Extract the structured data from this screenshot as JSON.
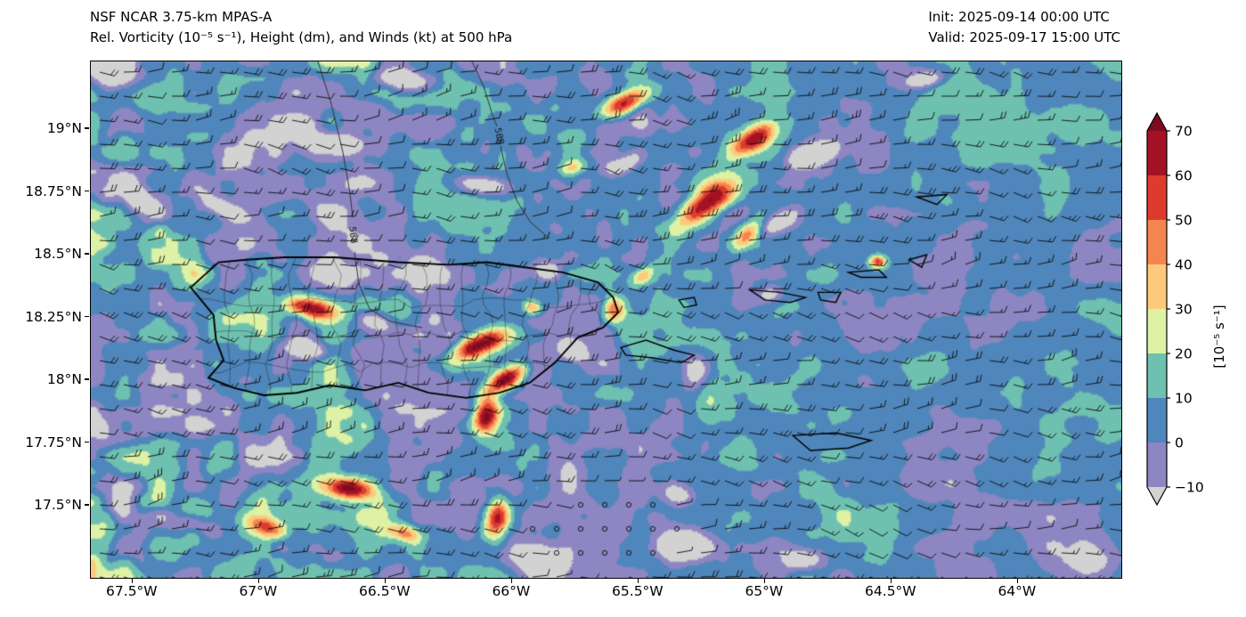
{
  "header": {
    "model_line": "NSF NCAR 3.75-km MPAS-A",
    "variable_line": "Rel. Vorticity (10⁻⁵ s⁻¹), Height (dm), and Winds (kt) at 500 hPa"
  },
  "run_info": {
    "init": "Init: 2025-09-14 00:00 UTC",
    "valid": "Valid: 2025-09-17 15:00 UTC"
  },
  "chart_data": {
    "type": "heatmap",
    "title": "Rel. Vorticity (10⁻⁵ s⁻¹), Height (dm), and Winds (kt) at 500 hPa",
    "model": "NSF NCAR 3.75-km MPAS-A",
    "level": "500 hPa",
    "fields": [
      "relative_vorticity_fill",
      "geopotential_height_contours",
      "wind_barbs"
    ],
    "extent": {
      "lon_west": -67.665,
      "lon_east": -63.591,
      "lat_south": 17.213,
      "lat_north": 19.27
    },
    "x_ticks": [
      {
        "lon": -67.5,
        "label": "67.5°W"
      },
      {
        "lon": -67.0,
        "label": "67°W"
      },
      {
        "lon": -66.5,
        "label": "66.5°W"
      },
      {
        "lon": -66.0,
        "label": "66°W"
      },
      {
        "lon": -65.5,
        "label": "65.5°W"
      },
      {
        "lon": -65.0,
        "label": "65°W"
      },
      {
        "lon": -64.5,
        "label": "64.5°W"
      },
      {
        "lon": -64.0,
        "label": "64°W"
      }
    ],
    "y_ticks": [
      {
        "lat": 19.0,
        "label": "19°N"
      },
      {
        "lat": 18.75,
        "label": "18.75°N"
      },
      {
        "lat": 18.5,
        "label": "18.5°N"
      },
      {
        "lat": 18.25,
        "label": "18.25°N"
      },
      {
        "lat": 18.0,
        "label": "18°N"
      },
      {
        "lat": 17.75,
        "label": "17.75°N"
      },
      {
        "lat": 17.5,
        "label": "17.5°N"
      }
    ],
    "colorbar": {
      "unit_label": "[10⁻⁵ s⁻¹]",
      "tick_values": [
        70,
        60,
        50,
        40,
        30,
        20,
        10,
        0,
        -10
      ],
      "tick_labels": [
        "70",
        "60",
        "50",
        "40",
        "30",
        "20",
        "10",
        "0",
        "−10"
      ],
      "levels": [
        -10,
        0,
        10,
        20,
        30,
        40,
        50,
        60,
        70
      ],
      "bin_colors": [
        "#8d86c2",
        "#4f86bb",
        "#6ec1b0",
        "#ddf2a5",
        "#fdc97b",
        "#f5854e",
        "#dc3b2d",
        "#a31224"
      ],
      "under_color": "#d2d2d2",
      "over_color": "#7d0b20",
      "extend": "both"
    },
    "wind": {
      "barb_units": "kt",
      "typical_speed_kt": 16,
      "prevailing_direction": "easterly"
    },
    "height_contours": [
      {
        "label": "588",
        "points": [
          [
            255,
            0
          ],
          [
            270,
            48
          ],
          [
            283,
            102
          ],
          [
            291,
            148
          ],
          [
            294,
            175
          ],
          [
            296,
            215
          ],
          [
            301,
            250
          ],
          [
            313,
            278
          ],
          [
            336,
            292
          ],
          [
            372,
            299
          ]
        ],
        "gap": 5,
        "label_x": 294,
        "label_y": 195,
        "label_rot": 1.45
      },
      {
        "label": "588",
        "points": [
          [
            428,
            0
          ],
          [
            441,
            28
          ],
          [
            451,
            60
          ],
          [
            456,
            73
          ],
          [
            460,
            95
          ],
          [
            467,
            126
          ],
          [
            478,
            156
          ],
          [
            494,
            181
          ],
          [
            515,
            199
          ]
        ],
        "gap": 4,
        "label_x": 458,
        "label_y": 84,
        "label_rot": 1.35
      }
    ],
    "geography": {
      "puerto_rico": [
        [
          -67.16,
          18.47
        ],
        [
          -67.05,
          18.48
        ],
        [
          -66.9,
          18.49
        ],
        [
          -66.7,
          18.49
        ],
        [
          -66.45,
          18.47
        ],
        [
          -66.25,
          18.46
        ],
        [
          -66.1,
          18.47
        ],
        [
          -65.95,
          18.45
        ],
        [
          -65.8,
          18.43
        ],
        [
          -65.66,
          18.39
        ],
        [
          -65.6,
          18.33
        ],
        [
          -65.58,
          18.27
        ],
        [
          -65.64,
          18.21
        ],
        [
          -65.74,
          18.17
        ],
        [
          -65.83,
          18.07
        ],
        [
          -65.93,
          17.99
        ],
        [
          -66.05,
          17.95
        ],
        [
          -66.18,
          17.93
        ],
        [
          -66.33,
          17.95
        ],
        [
          -66.45,
          17.99
        ],
        [
          -66.58,
          17.96
        ],
        [
          -66.72,
          17.98
        ],
        [
          -66.85,
          17.95
        ],
        [
          -66.98,
          17.94
        ],
        [
          -67.1,
          17.97
        ],
        [
          -67.2,
          18.01
        ],
        [
          -67.14,
          18.08
        ],
        [
          -67.17,
          18.16
        ],
        [
          -67.18,
          18.26
        ],
        [
          -67.27,
          18.37
        ]
      ],
      "islands": [
        [
          [
            -65.57,
            18.13
          ],
          [
            -65.47,
            18.16
          ],
          [
            -65.36,
            18.12
          ],
          [
            -65.28,
            18.1
          ],
          [
            -65.33,
            18.07
          ],
          [
            -65.45,
            18.09
          ],
          [
            -65.55,
            18.1
          ]
        ],
        [
          [
            -65.34,
            18.32
          ],
          [
            -65.28,
            18.33
          ],
          [
            -65.27,
            18.3
          ],
          [
            -65.32,
            18.29
          ]
        ],
        [
          [
            -65.06,
            18.36
          ],
          [
            -64.94,
            18.35
          ],
          [
            -64.84,
            18.33
          ],
          [
            -64.9,
            18.31
          ],
          [
            -65.0,
            18.32
          ]
        ],
        [
          [
            -64.79,
            18.35
          ],
          [
            -64.7,
            18.35
          ],
          [
            -64.72,
            18.31
          ],
          [
            -64.78,
            18.32
          ]
        ],
        [
          [
            -64.67,
            18.43
          ],
          [
            -64.55,
            18.44
          ],
          [
            -64.52,
            18.41
          ],
          [
            -64.62,
            18.41
          ]
        ],
        [
          [
            -64.43,
            18.48
          ],
          [
            -64.36,
            18.5
          ],
          [
            -64.38,
            18.45
          ]
        ],
        [
          [
            -64.4,
            18.73
          ],
          [
            -64.28,
            18.74
          ],
          [
            -64.32,
            18.7
          ]
        ],
        [
          [
            -64.89,
            17.78
          ],
          [
            -64.72,
            17.79
          ],
          [
            -64.58,
            17.76
          ],
          [
            -64.67,
            17.73
          ],
          [
            -64.82,
            17.72
          ]
        ]
      ]
    },
    "render": {
      "seeds": [
        11,
        23,
        37,
        71,
        83,
        53
      ],
      "calm": {
        "x": 594,
        "y": 532,
        "sx": 100,
        "sy": 46,
        "amp": 22
      },
      "blobs": [
        {
          "x": 599,
          "y": 47,
          "sx": 30,
          "sy": 12,
          "rot": -0.45,
          "amp": 62
        },
        {
          "x": 744,
          "y": 88,
          "sx": 30,
          "sy": 13,
          "rot": -0.55,
          "amp": 68
        },
        {
          "x": 692,
          "y": 160,
          "sx": 38,
          "sy": 16,
          "rot": -0.65,
          "amp": 74
        },
        {
          "x": 737,
          "y": 196,
          "sx": 22,
          "sy": 12,
          "rot": -0.8,
          "amp": 50
        },
        {
          "x": 249,
          "y": 277,
          "sx": 27,
          "sy": 11,
          "rot": 0.18,
          "amp": 63
        },
        {
          "x": 438,
          "y": 318,
          "sx": 30,
          "sy": 12,
          "rot": -0.35,
          "amp": 70
        },
        {
          "x": 467,
          "y": 357,
          "sx": 26,
          "sy": 11,
          "rot": -0.5,
          "amp": 66
        },
        {
          "x": 444,
          "y": 398,
          "sx": 14,
          "sy": 20,
          "rot": 0.25,
          "amp": 70
        },
        {
          "x": 587,
          "y": 278,
          "sx": 13,
          "sy": 15,
          "rot": 0,
          "amp": 54
        },
        {
          "x": 497,
          "y": 277,
          "sx": 11,
          "sy": 9,
          "rot": 0.3,
          "amp": 42
        },
        {
          "x": 289,
          "y": 480,
          "sx": 30,
          "sy": 12,
          "rot": 0.12,
          "amp": 64
        },
        {
          "x": 457,
          "y": 513,
          "sx": 13,
          "sy": 24,
          "rot": 0.1,
          "amp": 58
        },
        {
          "x": 199,
          "y": 524,
          "sx": 22,
          "sy": 10,
          "rot": 0.3,
          "amp": 40
        },
        {
          "x": 352,
          "y": 530,
          "sx": 18,
          "sy": 9,
          "rot": 0.25,
          "amp": 38
        },
        {
          "x": 620,
          "y": 242,
          "sx": 16,
          "sy": 9,
          "rot": -0.7,
          "amp": 34
        },
        {
          "x": 540,
          "y": 120,
          "sx": 14,
          "sy": 9,
          "rot": -0.3,
          "amp": 30
        },
        {
          "x": 884,
          "y": 225,
          "sx": 9,
          "sy": 7,
          "rot": 0,
          "amp": 46
        },
        {
          "x": 20,
          "y": 16,
          "sx": 26,
          "sy": 14,
          "rot": 0.2,
          "amp": -34
        },
        {
          "x": 354,
          "y": 22,
          "sx": 34,
          "sy": 12,
          "rot": 0.15,
          "amp": -38
        },
        {
          "x": 274,
          "y": 92,
          "sx": 40,
          "sy": 13,
          "rot": 0.1,
          "amp": -36
        },
        {
          "x": 444,
          "y": 140,
          "sx": 30,
          "sy": 11,
          "rot": 0.12,
          "amp": -34
        },
        {
          "x": 150,
          "y": 166,
          "sx": 36,
          "sy": 12,
          "rot": 0.45,
          "amp": -34
        },
        {
          "x": 50,
          "y": 155,
          "sx": 24,
          "sy": 14,
          "rot": 0.9,
          "amp": -30
        },
        {
          "x": 512,
          "y": 235,
          "sx": 16,
          "sy": 10,
          "rot": 0,
          "amp": -28
        },
        {
          "x": 378,
          "y": 236,
          "sx": 18,
          "sy": 9,
          "rot": 0.2,
          "amp": -26
        },
        {
          "x": 243,
          "y": 324,
          "sx": 22,
          "sy": 10,
          "rot": 0.2,
          "amp": -30
        },
        {
          "x": 322,
          "y": 292,
          "sx": 16,
          "sy": 9,
          "rot": 0.3,
          "amp": -26
        },
        {
          "x": 542,
          "y": 326,
          "sx": 16,
          "sy": 12,
          "rot": 0.4,
          "amp": -30
        },
        {
          "x": 601,
          "y": 116,
          "sx": 22,
          "sy": 10,
          "rot": -0.5,
          "amp": -30
        },
        {
          "x": 812,
          "y": 104,
          "sx": 30,
          "sy": 12,
          "rot": -0.3,
          "amp": -36
        },
        {
          "x": 772,
          "y": 182,
          "sx": 26,
          "sy": 12,
          "rot": -0.5,
          "amp": -34
        },
        {
          "x": 680,
          "y": 350,
          "sx": 16,
          "sy": 20,
          "rot": 0,
          "amp": -30
        },
        {
          "x": 660,
          "y": 488,
          "sx": 20,
          "sy": 12,
          "rot": 0.2,
          "amp": -28
        },
        {
          "x": 671,
          "y": 545,
          "sx": 34,
          "sy": 18,
          "rot": 0.05,
          "amp": -34
        },
        {
          "x": 801,
          "y": 560,
          "sx": 24,
          "sy": 12,
          "rot": 0,
          "amp": -30
        },
        {
          "x": 499,
          "y": 560,
          "sx": 30,
          "sy": 16,
          "rot": 0,
          "amp": -34
        },
        {
          "x": 112,
          "y": 520,
          "sx": 26,
          "sy": 12,
          "rot": 0.2,
          "amp": -30
        },
        {
          "x": 30,
          "y": 500,
          "sx": 20,
          "sy": 16,
          "rot": 0,
          "amp": -26
        },
        {
          "x": 940,
          "y": 20,
          "sx": 26,
          "sy": 10,
          "rot": -0.2,
          "amp": -30
        },
        {
          "x": 763,
          "y": 262,
          "sx": 13,
          "sy": 8,
          "rot": 0,
          "amp": -24
        },
        {
          "x": 1120,
          "y": 560,
          "sx": 40,
          "sy": 22,
          "rot": 0,
          "amp": -14
        }
      ]
    }
  }
}
